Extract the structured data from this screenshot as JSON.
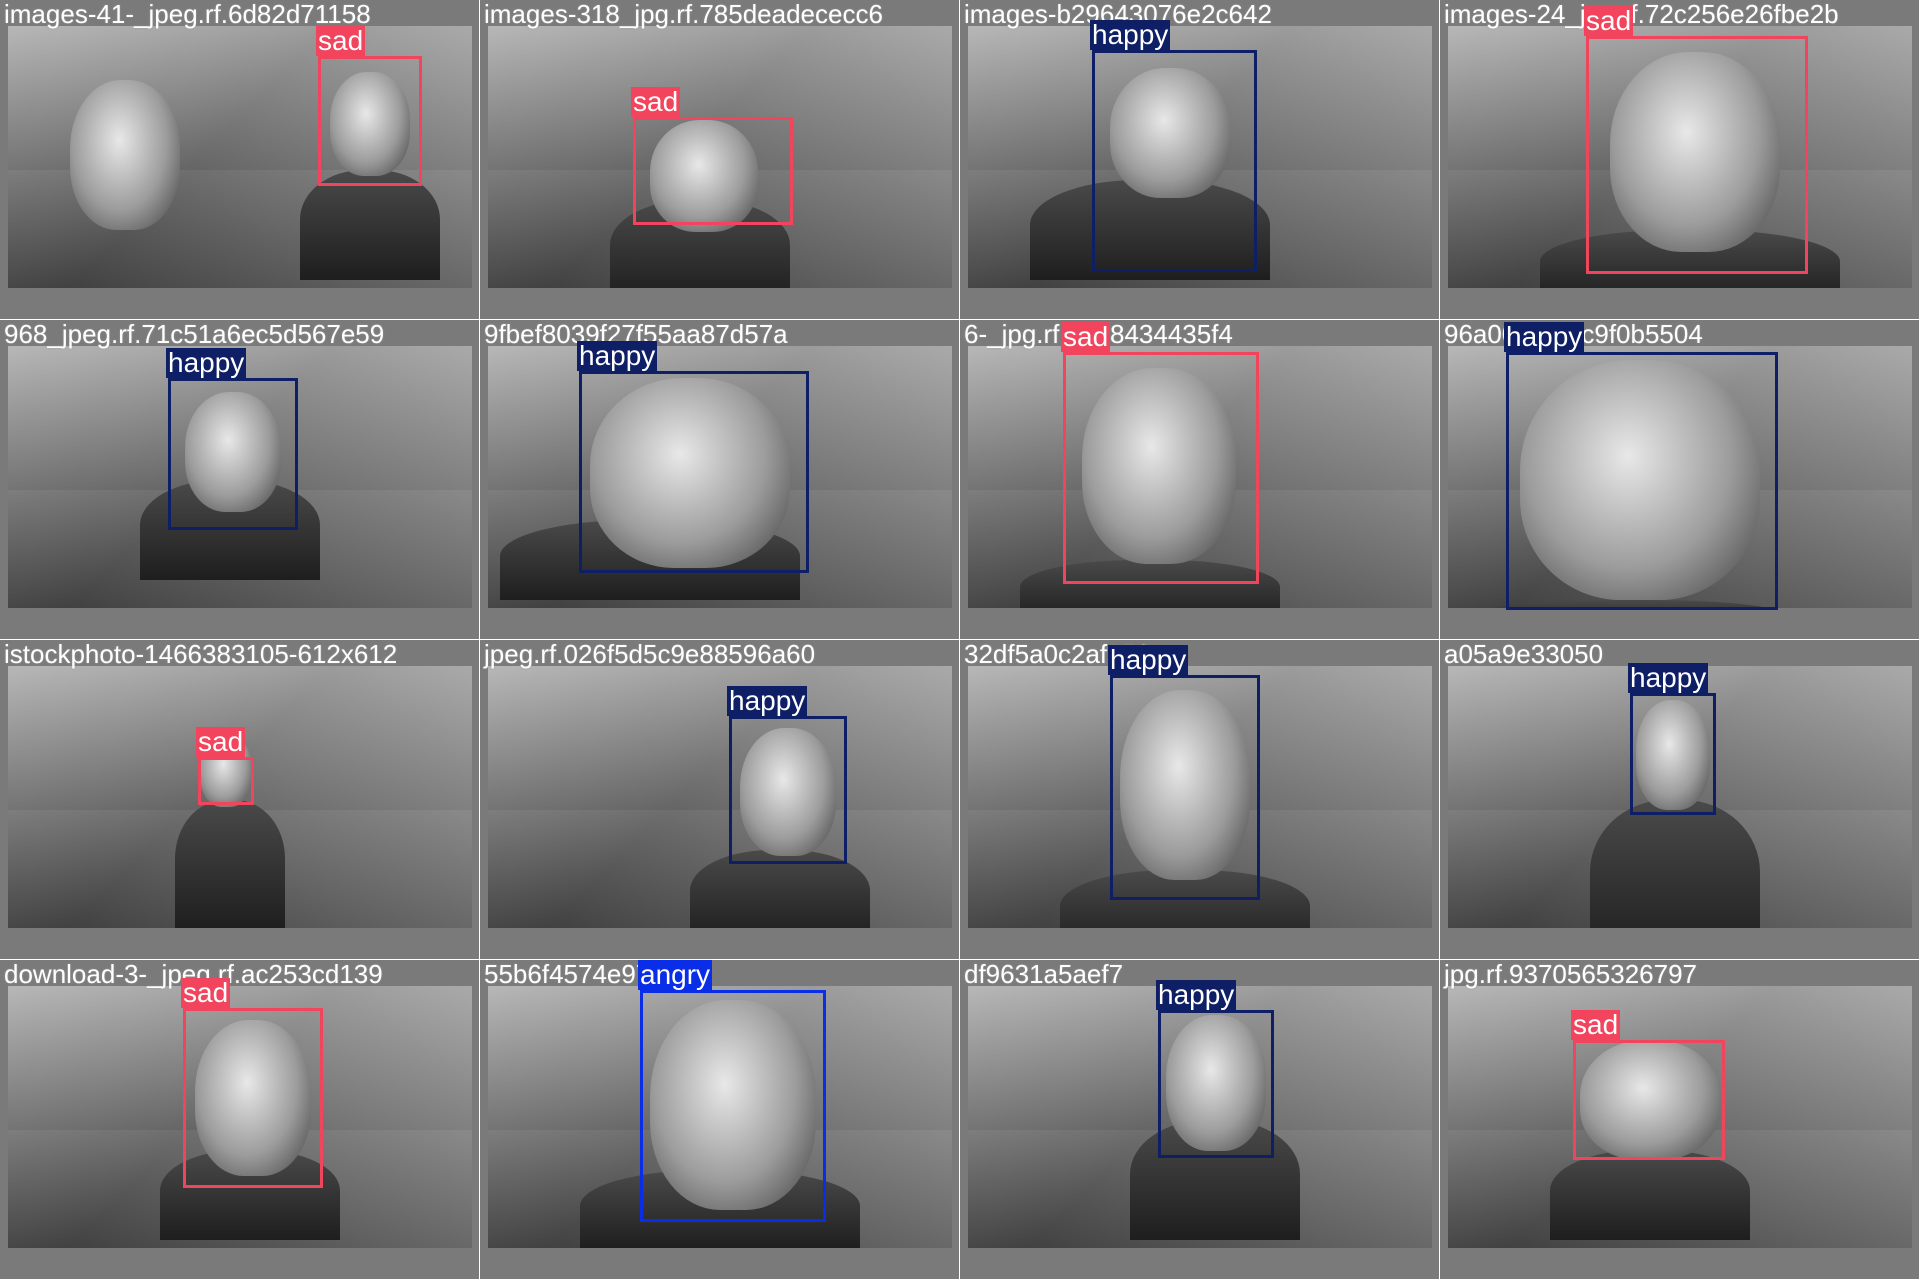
{
  "colors": {
    "sad": "#f2445c",
    "happy": "#0f1f66",
    "angry": "#0a2ee8"
  },
  "tiles": [
    {
      "filename": "images-41-_jpeg.rf.6d82d71158",
      "label": "sad"
    },
    {
      "filename": "images-318_jpg.rf.785deadececc6",
      "label": "sad"
    },
    {
      "filename": "images-b29643076e2c642",
      "label": "happy"
    },
    {
      "filename": "images-24_jpg.rf.72c256e26fbe2b",
      "label": "sad"
    },
    {
      "filename": "968_jpeg.rf.71c51a6ec5d567e59",
      "label": "happy"
    },
    {
      "filename": "9fbef8039f27f55aa87d57a",
      "label": "happy"
    },
    {
      "filename": "6-_jpg.rf.a628434435f4",
      "label": "sad"
    },
    {
      "filename": "96a00ddf26c9f0b5504",
      "label": "happy"
    },
    {
      "filename": "istockphoto-1466383105-612x612",
      "label": "sad"
    },
    {
      "filename": "jpeg.rf.026f5d5c9e88596a60",
      "label": "happy"
    },
    {
      "filename": "32df5a0c2af156",
      "label": "happy"
    },
    {
      "filename": "a05a9e33050",
      "label": "happy"
    },
    {
      "filename": "download-3-_jpeg.rf.ac253cd139",
      "label": "sad"
    },
    {
      "filename": "55b6f4574e977c",
      "label": "angry"
    },
    {
      "filename": "df9631a5aef7",
      "label": "happy"
    },
    {
      "filename": "jpg.rf.9370565326797",
      "label": "sad"
    }
  ]
}
